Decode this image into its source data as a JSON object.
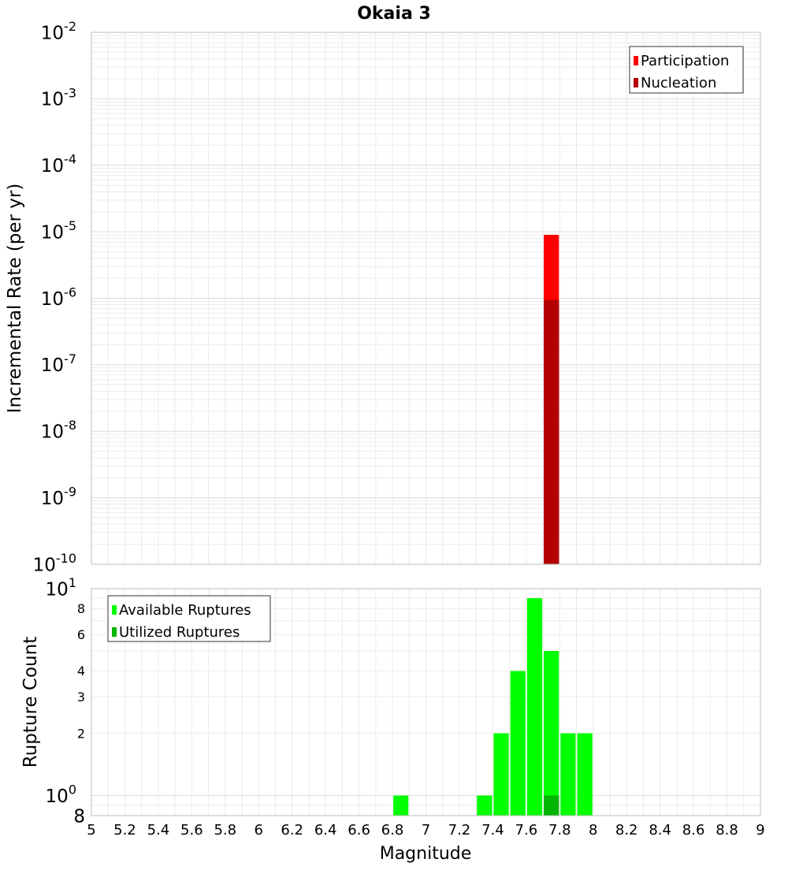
{
  "chart_data": [
    {
      "type": "bar",
      "title": "Okaia 3",
      "xlabel": "",
      "ylabel": "Incremental Rate (per yr)",
      "yscale": "log",
      "ylim": [
        1e-10,
        0.01
      ],
      "xlim": [
        5,
        9
      ],
      "y_tick_labels": [
        {
          "base": "10",
          "exp": "-10",
          "value": 1e-10
        },
        {
          "base": "10",
          "exp": "-9",
          "value": 1e-09
        },
        {
          "base": "10",
          "exp": "-8",
          "value": 1e-08
        },
        {
          "base": "10",
          "exp": "-7",
          "value": 1e-07
        },
        {
          "base": "10",
          "exp": "-6",
          "value": 1e-06
        },
        {
          "base": "10",
          "exp": "-5",
          "value": 1e-05
        },
        {
          "base": "10",
          "exp": "-4",
          "value": 0.0001
        },
        {
          "base": "10",
          "exp": "-3",
          "value": 0.001
        },
        {
          "base": "10",
          "exp": "-2",
          "value": 0.01
        }
      ],
      "legend": {
        "position": "top-right",
        "entries": [
          {
            "label": "Participation",
            "color": "#ff0000"
          },
          {
            "label": "Nucleation",
            "color": "#b40000"
          }
        ]
      },
      "series": [
        {
          "name": "Participation",
          "color": "#ff0000",
          "x": [
            7.75
          ],
          "values": [
            9e-06
          ]
        },
        {
          "name": "Nucleation",
          "color": "#b40000",
          "x": [
            7.75
          ],
          "values": [
            9.5e-07
          ]
        }
      ]
    },
    {
      "type": "bar",
      "title": "",
      "xlabel": "Magnitude",
      "ylabel": "Rupture Count",
      "yscale": "log",
      "ylim": [
        0.8,
        10
      ],
      "xlim": [
        5,
        9
      ],
      "x_tick_labels": [
        "5",
        "5.2",
        "5.4",
        "5.6",
        "5.8",
        "6",
        "6.2",
        "6.4",
        "6.6",
        "6.8",
        "7",
        "7.2",
        "7.4",
        "7.6",
        "7.8",
        "8",
        "8.2",
        "8.4",
        "8.6",
        "8.8",
        "9"
      ],
      "y_tick_labels": [
        {
          "base": "8",
          "exp": "",
          "value": 0.8,
          "major": true
        },
        {
          "base": "10",
          "exp": "0",
          "value": 1,
          "major": true
        },
        {
          "base": "2",
          "exp": "",
          "value": 2,
          "major": false
        },
        {
          "base": "3",
          "exp": "",
          "value": 3,
          "major": false
        },
        {
          "base": "4",
          "exp": "",
          "value": 4,
          "major": false
        },
        {
          "base": "6",
          "exp": "",
          "value": 6,
          "major": false
        },
        {
          "base": "8",
          "exp": "",
          "value": 8,
          "major": false
        },
        {
          "base": "10",
          "exp": "1",
          "value": 10,
          "major": true
        }
      ],
      "legend": {
        "position": "top-left",
        "entries": [
          {
            "label": "Available Ruptures",
            "color": "#00ff00"
          },
          {
            "label": "Utilized Ruptures",
            "color": "#00b400"
          }
        ]
      },
      "series": [
        {
          "name": "Available Ruptures",
          "color": "#00ff00",
          "x": [
            6.85,
            7.35,
            7.45,
            7.55,
            7.65,
            7.75,
            7.85,
            7.95
          ],
          "values": [
            1,
            1,
            2,
            4,
            9,
            5,
            2,
            2
          ]
        },
        {
          "name": "Utilized Ruptures",
          "color": "#00b400",
          "x": [
            7.75
          ],
          "values": [
            1
          ]
        }
      ]
    }
  ]
}
